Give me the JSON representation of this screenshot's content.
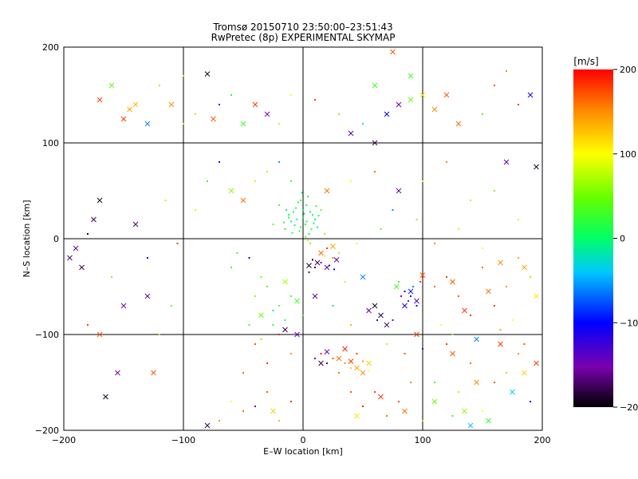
{
  "title_line1": "Tromsø 20150710 23:50:00–23:51:43",
  "title_line2": "RwPretec (8p) EXPERIMENTAL SKYMAP",
  "chart_data": {
    "type": "scatter",
    "xlabel": "E–W location [km]",
    "ylabel": "N–S location [km]",
    "xlim": [
      -200,
      200
    ],
    "ylim": [
      -200,
      200
    ],
    "xticks": [
      -200,
      -100,
      0,
      100,
      200
    ],
    "yticks": [
      -200,
      -100,
      0,
      100,
      200
    ],
    "grid": true,
    "colorbar": {
      "label": "[m/s]",
      "range": [
        -200,
        200
      ],
      "ticks": [
        200,
        100,
        0,
        -100,
        -200
      ],
      "colormap": "rainbow (black → purple → blue → cyan → green → yellow → red)"
    },
    "marker_types": [
      "dot",
      "x"
    ],
    "points": [
      [
        2,
        15,
        10,
        "d"
      ],
      [
        -5,
        20,
        5,
        "d"
      ],
      [
        -10,
        18,
        -10,
        "d"
      ],
      [
        8,
        25,
        15,
        "d"
      ],
      [
        0,
        30,
        0,
        "d"
      ],
      [
        -15,
        10,
        20,
        "d"
      ],
      [
        5,
        5,
        -5,
        "d"
      ],
      [
        12,
        12,
        10,
        "d"
      ],
      [
        -8,
        28,
        0,
        "d"
      ],
      [
        3,
        35,
        5,
        "d"
      ],
      [
        -3,
        8,
        15,
        "d"
      ],
      [
        10,
        20,
        -10,
        "d"
      ],
      [
        -12,
        25,
        10,
        "d"
      ],
      [
        6,
        -5,
        60,
        "d"
      ],
      [
        -2,
        40,
        30,
        "d"
      ],
      [
        15,
        30,
        50,
        "d"
      ],
      [
        -20,
        35,
        40,
        "d"
      ],
      [
        18,
        5,
        60,
        "d"
      ],
      [
        -25,
        15,
        50,
        "d"
      ],
      [
        4,
        -2,
        80,
        "d"
      ],
      [
        20,
        -10,
        180,
        "d"
      ],
      [
        25,
        -20,
        150,
        "d"
      ],
      [
        15,
        -25,
        -150,
        "d"
      ],
      [
        10,
        -30,
        -180,
        "d"
      ],
      [
        22,
        -28,
        -120,
        "d"
      ],
      [
        8,
        -22,
        -190,
        "d"
      ],
      [
        30,
        -15,
        120,
        "d"
      ],
      [
        5,
        -35,
        -160,
        "d"
      ],
      [
        18,
        -18,
        100,
        "d"
      ],
      [
        26,
        -32,
        -100,
        "d"
      ],
      [
        12,
        -25,
        -180,
        "x"
      ],
      [
        20,
        -30,
        -160,
        "x"
      ],
      [
        5,
        -28,
        -190,
        "x"
      ],
      [
        28,
        -22,
        -140,
        "x"
      ],
      [
        15,
        -15,
        160,
        "x"
      ],
      [
        25,
        -8,
        140,
        "x"
      ],
      [
        85,
        -55,
        -100,
        "d"
      ],
      [
        90,
        -60,
        -120,
        "d"
      ],
      [
        88,
        -65,
        -80,
        "d"
      ],
      [
        92,
        -50,
        -60,
        "d"
      ],
      [
        80,
        -45,
        20,
        "d"
      ],
      [
        95,
        -70,
        -100,
        "d"
      ],
      [
        82,
        -60,
        -150,
        "d"
      ],
      [
        98,
        -45,
        180,
        "d"
      ],
      [
        100,
        -40,
        190,
        "d"
      ],
      [
        85,
        -70,
        -110,
        "x"
      ],
      [
        90,
        -55,
        -90,
        "x"
      ],
      [
        95,
        -65,
        -130,
        "x"
      ],
      [
        78,
        -50,
        30,
        "x"
      ],
      [
        100,
        -38,
        170,
        "x"
      ],
      [
        60,
        -70,
        -190,
        "x"
      ],
      [
        65,
        -80,
        -180,
        "x"
      ],
      [
        55,
        -75,
        -160,
        "x"
      ],
      [
        70,
        -90,
        -170,
        "x"
      ],
      [
        62,
        -85,
        -120,
        "d"
      ],
      [
        75,
        -85,
        -150,
        "d"
      ],
      [
        15,
        -120,
        190,
        "d"
      ],
      [
        25,
        -125,
        170,
        "d"
      ],
      [
        35,
        -130,
        150,
        "d"
      ],
      [
        45,
        -120,
        180,
        "d"
      ],
      [
        40,
        -135,
        120,
        "d"
      ],
      [
        30,
        -140,
        160,
        "d"
      ],
      [
        50,
        -128,
        140,
        "d"
      ],
      [
        20,
        -130,
        -120,
        "d"
      ],
      [
        10,
        -125,
        -160,
        "d"
      ],
      [
        55,
        -138,
        100,
        "d"
      ],
      [
        30,
        -125,
        160,
        "x"
      ],
      [
        40,
        -128,
        180,
        "x"
      ],
      [
        45,
        -135,
        140,
        "x"
      ],
      [
        20,
        -118,
        -150,
        "x"
      ],
      [
        15,
        -130,
        -180,
        "x"
      ],
      [
        55,
        -130,
        120,
        "x"
      ],
      [
        35,
        -115,
        190,
        "x"
      ],
      [
        50,
        -140,
        150,
        "x"
      ],
      [
        -20,
        -100,
        190,
        "d"
      ],
      [
        -40,
        -110,
        170,
        "d"
      ],
      [
        -30,
        -130,
        180,
        "d"
      ],
      [
        -10,
        -120,
        150,
        "d"
      ],
      [
        -50,
        -140,
        160,
        "d"
      ],
      [
        -15,
        -95,
        -180,
        "x"
      ],
      [
        -5,
        -100,
        -150,
        "x"
      ],
      [
        -25,
        -90,
        20,
        "d"
      ],
      [
        -35,
        -105,
        60,
        "d"
      ],
      [
        -45,
        -90,
        30,
        "d"
      ],
      [
        -10,
        -60,
        30,
        "d"
      ],
      [
        -20,
        -70,
        50,
        "d"
      ],
      [
        -30,
        -50,
        40,
        "d"
      ],
      [
        0,
        -80,
        20,
        "d"
      ],
      [
        -15,
        -85,
        10,
        "d"
      ],
      [
        -40,
        -60,
        60,
        "d"
      ],
      [
        -25,
        -75,
        -20,
        "d"
      ],
      [
        -5,
        -65,
        30,
        "x"
      ],
      [
        -35,
        -80,
        50,
        "x"
      ],
      [
        120,
        -40,
        180,
        "d"
      ],
      [
        130,
        -60,
        170,
        "d"
      ],
      [
        150,
        -30,
        160,
        "d"
      ],
      [
        160,
        -70,
        180,
        "d"
      ],
      [
        170,
        -50,
        150,
        "d"
      ],
      [
        180,
        -20,
        140,
        "d"
      ],
      [
        190,
        -40,
        120,
        "d"
      ],
      [
        140,
        -80,
        180,
        "d"
      ],
      [
        110,
        -50,
        160,
        "d"
      ],
      [
        175,
        -85,
        100,
        "d"
      ],
      [
        125,
        -45,
        170,
        "x"
      ],
      [
        155,
        -55,
        160,
        "x"
      ],
      [
        185,
        -30,
        140,
        "x"
      ],
      [
        135,
        -75,
        180,
        "x"
      ],
      [
        165,
        -25,
        150,
        "x"
      ],
      [
        195,
        -60,
        110,
        "x"
      ],
      [
        120,
        -110,
        180,
        "d"
      ],
      [
        140,
        -130,
        160,
        "d"
      ],
      [
        160,
        -150,
        170,
        "d"
      ],
      [
        180,
        -120,
        150,
        "d"
      ],
      [
        130,
        -160,
        120,
        "d"
      ],
      [
        150,
        -180,
        100,
        "d"
      ],
      [
        170,
        -140,
        60,
        "d"
      ],
      [
        110,
        -150,
        30,
        "d"
      ],
      [
        190,
        -170,
        -100,
        "d"
      ],
      [
        125,
        -120,
        170,
        "x"
      ],
      [
        145,
        -150,
        150,
        "x"
      ],
      [
        165,
        -110,
        180,
        "x"
      ],
      [
        185,
        -140,
        120,
        "x"
      ],
      [
        135,
        -180,
        60,
        "x"
      ],
      [
        155,
        -190,
        20,
        "x"
      ],
      [
        175,
        -160,
        -30,
        "x"
      ],
      [
        60,
        -160,
        180,
        "d"
      ],
      [
        80,
        -170,
        170,
        "d"
      ],
      [
        70,
        -185,
        160,
        "d"
      ],
      [
        90,
        -150,
        150,
        "d"
      ],
      [
        50,
        -175,
        190,
        "d"
      ],
      [
        100,
        -190,
        120,
        "d"
      ],
      [
        40,
        -160,
        170,
        "d"
      ],
      [
        65,
        -165,
        180,
        "x"
      ],
      [
        85,
        -180,
        160,
        "x"
      ],
      [
        45,
        -185,
        110,
        "x"
      ],
      [
        -10,
        -170,
        180,
        "d"
      ],
      [
        -30,
        -160,
        170,
        "d"
      ],
      [
        -50,
        -180,
        160,
        "d"
      ],
      [
        -70,
        -190,
        150,
        "d"
      ],
      [
        -60,
        -170,
        100,
        "d"
      ],
      [
        -20,
        -190,
        130,
        "d"
      ],
      [
        -40,
        -175,
        -160,
        "d"
      ],
      [
        -80,
        -195,
        -180,
        "x"
      ],
      [
        -25,
        -180,
        120,
        "x"
      ],
      [
        -160,
        160,
        40,
        "x"
      ],
      [
        -170,
        145,
        180,
        "x"
      ],
      [
        -140,
        140,
        130,
        "x"
      ],
      [
        -120,
        160,
        60,
        "d"
      ],
      [
        -100,
        170,
        80,
        "d"
      ],
      [
        -80,
        172,
        -190,
        "x"
      ],
      [
        -60,
        150,
        10,
        "d"
      ],
      [
        -30,
        130,
        -150,
        "x"
      ],
      [
        -40,
        140,
        180,
        "x"
      ],
      [
        -50,
        120,
        30,
        "x"
      ],
      [
        -90,
        130,
        120,
        "d"
      ],
      [
        -110,
        140,
        150,
        "x"
      ],
      [
        -130,
        120,
        -60,
        "x"
      ],
      [
        -150,
        125,
        180,
        "x"
      ],
      [
        -145,
        135,
        140,
        "x"
      ],
      [
        -75,
        125,
        170,
        "x"
      ],
      [
        -100,
        120,
        110,
        "d"
      ],
      [
        -70,
        140,
        -130,
        "d"
      ],
      [
        -20,
        120,
        80,
        "d"
      ],
      [
        -10,
        150,
        100,
        "d"
      ],
      [
        10,
        145,
        180,
        "d"
      ],
      [
        30,
        130,
        60,
        "d"
      ],
      [
        50,
        120,
        -20,
        "d"
      ],
      [
        60,
        160,
        30,
        "x"
      ],
      [
        70,
        130,
        -100,
        "x"
      ],
      [
        80,
        140,
        -140,
        "x"
      ],
      [
        90,
        145,
        50,
        "x"
      ],
      [
        100,
        150,
        110,
        "x"
      ],
      [
        110,
        135,
        150,
        "x"
      ],
      [
        120,
        150,
        170,
        "x"
      ],
      [
        130,
        120,
        160,
        "x"
      ],
      [
        150,
        130,
        40,
        "d"
      ],
      [
        160,
        160,
        170,
        "d"
      ],
      [
        170,
        175,
        150,
        "d"
      ],
      [
        180,
        140,
        180,
        "d"
      ],
      [
        190,
        150,
        -110,
        "x"
      ],
      [
        75,
        195,
        170,
        "x"
      ],
      [
        90,
        170,
        30,
        "x"
      ],
      [
        60,
        100,
        -180,
        "x"
      ],
      [
        40,
        110,
        -160,
        "x"
      ],
      [
        -170,
        40,
        -190,
        "x"
      ],
      [
        -175,
        20,
        -180,
        "x"
      ],
      [
        -190,
        -10,
        -160,
        "x"
      ],
      [
        -195,
        -20,
        -170,
        "x"
      ],
      [
        -185,
        -30,
        -180,
        "x"
      ],
      [
        -140,
        15,
        -170,
        "x"
      ],
      [
        -180,
        5,
        -190,
        "d"
      ],
      [
        -160,
        -40,
        60,
        "d"
      ],
      [
        -150,
        -70,
        -150,
        "x"
      ],
      [
        -130,
        -60,
        -160,
        "x"
      ],
      [
        -180,
        -90,
        180,
        "d"
      ],
      [
        -170,
        -100,
        170,
        "x"
      ],
      [
        -155,
        -140,
        -150,
        "x"
      ],
      [
        -165,
        -165,
        -190,
        "x"
      ],
      [
        -125,
        -140,
        170,
        "x"
      ],
      [
        -110,
        -70,
        50,
        "d"
      ],
      [
        -120,
        -100,
        120,
        "d"
      ],
      [
        -115,
        40,
        80,
        "d"
      ],
      [
        -130,
        -20,
        -100,
        "d"
      ],
      [
        -105,
        -5,
        180,
        "d"
      ],
      [
        -90,
        30,
        110,
        "d"
      ],
      [
        -80,
        60,
        20,
        "d"
      ],
      [
        -70,
        80,
        -120,
        "d"
      ],
      [
        -60,
        50,
        60,
        "x"
      ],
      [
        -50,
        40,
        160,
        "x"
      ],
      [
        -40,
        60,
        110,
        "d"
      ],
      [
        -30,
        70,
        70,
        "d"
      ],
      [
        -20,
        80,
        -50,
        "d"
      ],
      [
        -10,
        60,
        30,
        "d"
      ],
      [
        20,
        50,
        160,
        "x"
      ],
      [
        40,
        60,
        100,
        "d"
      ],
      [
        60,
        70,
        160,
        "d"
      ],
      [
        80,
        50,
        -150,
        "x"
      ],
      [
        100,
        60,
        100,
        "d"
      ],
      [
        120,
        80,
        150,
        "d"
      ],
      [
        140,
        40,
        70,
        "d"
      ],
      [
        160,
        50,
        60,
        "d"
      ],
      [
        170,
        80,
        -140,
        "x"
      ],
      [
        195,
        75,
        -190,
        "x"
      ],
      [
        180,
        20,
        110,
        "d"
      ],
      [
        150,
        -10,
        100,
        "d"
      ],
      [
        130,
        10,
        80,
        "d"
      ],
      [
        110,
        -5,
        150,
        "d"
      ],
      [
        95,
        20,
        60,
        "d"
      ],
      [
        75,
        30,
        -60,
        "d"
      ],
      [
        65,
        10,
        40,
        "d"
      ],
      [
        50,
        -40,
        -60,
        "x"
      ],
      [
        45,
        -5,
        90,
        "d"
      ],
      [
        35,
        -45,
        80,
        "d"
      ],
      [
        -55,
        -15,
        40,
        "d"
      ],
      [
        -60,
        -30,
        30,
        "d"
      ],
      [
        -45,
        -20,
        -100,
        "d"
      ],
      [
        -35,
        -40,
        50,
        "d"
      ],
      [
        -15,
        -45,
        70,
        "x"
      ],
      [
        10,
        -60,
        -160,
        "x"
      ],
      [
        25,
        -70,
        -30,
        "d"
      ],
      [
        40,
        -90,
        130,
        "d"
      ],
      [
        70,
        -110,
        120,
        "d"
      ],
      [
        85,
        -120,
        170,
        "d"
      ],
      [
        95,
        -100,
        180,
        "x"
      ],
      [
        100,
        -115,
        -120,
        "d"
      ],
      [
        115,
        -90,
        100,
        "d"
      ],
      [
        125,
        -100,
        60,
        "d"
      ],
      [
        145,
        -105,
        -60,
        "x"
      ],
      [
        165,
        -95,
        140,
        "d"
      ],
      [
        185,
        -110,
        170,
        "d"
      ],
      [
        195,
        -130,
        180,
        "x"
      ],
      [
        110,
        -170,
        50,
        "x"
      ],
      [
        125,
        -185,
        10,
        "d"
      ],
      [
        140,
        -195,
        -40,
        "x"
      ],
      [
        -5,
        20,
        0,
        "d"
      ],
      [
        0,
        22,
        10,
        "d"
      ],
      [
        -7,
        14,
        -5,
        "d"
      ],
      [
        3,
        18,
        20,
        "d"
      ],
      [
        -12,
        22,
        5,
        "d"
      ],
      [
        6,
        28,
        -10,
        "d"
      ],
      [
        -2,
        12,
        25,
        "d"
      ],
      [
        9,
        16,
        0,
        "d"
      ],
      [
        -6,
        32,
        15,
        "d"
      ],
      [
        1,
        26,
        -15,
        "d"
      ],
      [
        -9,
        6,
        10,
        "d"
      ],
      [
        7,
        10,
        30,
        "d"
      ],
      [
        -14,
        30,
        -5,
        "d"
      ],
      [
        11,
        34,
        20,
        "d"
      ],
      [
        -4,
        38,
        10,
        "d"
      ],
      [
        2,
        2,
        40,
        "d"
      ],
      [
        13,
        24,
        5,
        "d"
      ],
      [
        -16,
        17,
        25,
        "d"
      ],
      [
        4,
        44,
        15,
        "d"
      ],
      [
        -1,
        48,
        -10,
        "d"
      ]
    ]
  }
}
